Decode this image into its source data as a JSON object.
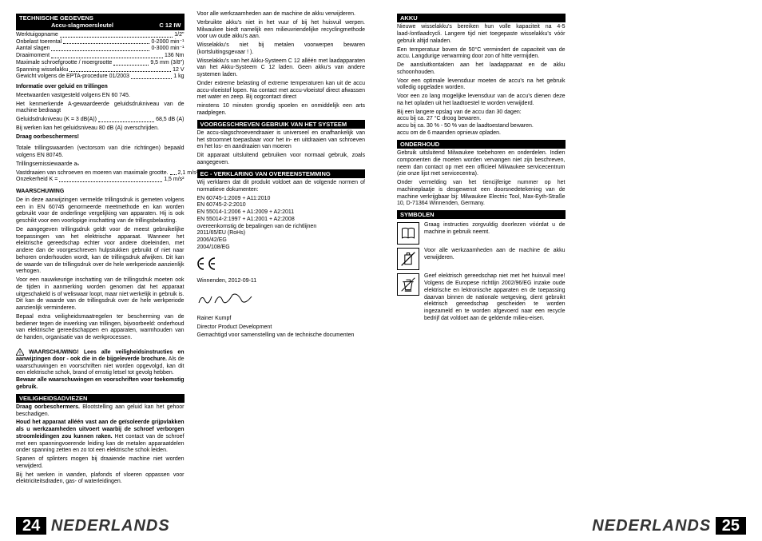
{
  "pageL": "24",
  "pageR": "25",
  "lang": "NEDERLANDS",
  "tech": {
    "title": "TECHNISCHE GEGEVENS",
    "mid": "Accu-slagmoersleutel",
    "right": "C 12 IW",
    "rows": [
      {
        "l": "Werktuigopname",
        "v": "1/2\""
      },
      {
        "l": "Onbelast toerental",
        "v": "0-2000 min⁻¹"
      },
      {
        "l": "Aantal slagen",
        "v": "0-3000 min⁻¹"
      },
      {
        "l": "Draaimoment",
        "v": "136 Nm"
      },
      {
        "l": "Maximale schroefgrootte / moergrootte",
        "v": "9,5 mm (3/8\")"
      },
      {
        "l": "Spanning wisselakku",
        "v": "12 V"
      },
      {
        "l": "Gewicht volgens de EPTA-procedure 01/2003",
        "v": "1 kg"
      }
    ],
    "noise_h": "Informatie over geluid en trillingen",
    "noise1": "Meetwaarden vastgesteld volgens EN 60 745.",
    "noise2": "Het kenmerkende A-gewaardeerde geluidsdrukniveau van de machine bedraagt",
    "noiserow": {
      "l": "  Geluidsdrukniveau (K = 3 dB(A))",
      "v": "68,5 dB (A)"
    },
    "noise3": "Bij werken kan het geluidsniveau 80 dB (A) overschrijden.",
    "noise4": "Draag oorbeschermers!",
    "vib1": "Totale trillingswaarden (vectorsom van drie richtingen) bepaald volgens EN 80745.",
    "vib2": "Trillingsemissiewaarde aₕ",
    "vibrows": [
      {
        "l": "  Vastdraaien van schroeven en moeren van maximale grootte.",
        "v": "2,1 m/s²"
      },
      {
        "l": "  Onzekerheid K =",
        "v": "1,5 m/s²"
      }
    ]
  },
  "warn_h": "WAARSCHUWING",
  "warn_p": [
    "De in deze aanwijzingen vermelde trillingsdruk is gemeten volgens een in EN 60745 genormeerde meetmethode en kan worden gebruikt voor de onderlinge vergelijking van apparaten. Hij is ook geschikt voor een voorlopige inschatting van de trillingsbelasting.",
    "De aangegeven trillingsdruk geldt voor de meest gebruikelijke toepassingen van het elektrische apparaat. Wanneer het elektrische gereedschap echter voor andere doeleinden, met andere dan de voorgeschreven hulpstukken gebruikt of niet naar behoren onderhouden wordt, kan de trillingsdruk afwijken. Dit kan de waarde van de trillingsdruk over de hele werkperiode aanzienlijk verhogen.",
    "Voor een nauwkeurige inschatting van de trillingsdruk moeten ook de tijden in aanmerking worden genomen dat het apparaat uitgeschakeld is of weliswaar loopt, maar niet werkelijk in gebruik is. Dit kan de waarde van de trillingsdruk over de hele werkperiode aanzienlijk verminderen.",
    "Bepaal extra veiligheidsmaatregelen ter bescherming van de bediener tegen de inwerking van trillingen, bijvoorbeeld: onderhoud van elektrische gereedschappen en apparaten, warmhouden van de handen, organisatie van de werkprocessen."
  ],
  "wbox": {
    "t1": "WAARSCHUWING! Lees alle veiligheidsinstructies en aanwijzingen door - ook die in de bijgeleverde brochure.",
    "t2": " Als de waarschuwingen en voorschriften niet worden opgevolgd, kan dit een elektrische schok, brand of ernstig letsel tot gevolg hebben.",
    "t3": "Bewaar alle waarschuwingen en voorschriften voor toekomstig gebruik."
  },
  "veil_h": "VEILIGHEIDSADVIEZEN",
  "veil_p": [
    {
      "b": "Draag oorbeschermers.",
      "t": " Blootstelling aan geluid kan het gehoor beschadigen."
    },
    {
      "b": "Houd het apparaat alléén vast aan de geïsoleerde grijpvlakken als u werkzaamheden uitvoert waarbij de schroef verborgen stroomleidingen zou kunnen raken.",
      "t": " Het contact van de schroef met een spanningvoerende leiding kan de metalen apparaatdelen onder spanning zetten en zo tot een elektrische schok leiden."
    },
    {
      "t": "Spanen of splinters mogen bij draaiende machine niet worden verwijderd."
    },
    {
      "t": "Bij het werken in wanden, plafonds of vloeren oppassen voor elektriciteitsdraden, gas- of waterleidingen."
    },
    {
      "t": "Voor alle werkzaamheden aan de machine de akku verwijderen."
    },
    {
      "t": "Verbruikte akku's niet in het vuur of bij het huisvuil werpen. Milwaukee biedt namelijk een milieuvriendelijke recyclingmethode voor uw oude akku's aan."
    },
    {
      "t": "Wisselakku's niet bij metalen voorwerpen bewaren (kortsluitingsgevaar ! )."
    },
    {
      "t": "Wisselakku's van het Akku-Systeem C 12 alléén met laadapparaten van het Akku-Systeem C 12 laden. Geen akku's van andere systemen laden."
    },
    {
      "t": "Onder extreme belasting of extreme temperaturen kan uit de accu accu-vloeistof lopen. Na contact met accu-vloeistof direct afwassen met water en zeep. Bij oogcontact direct"
    }
  ],
  "col2top": "minstens 10 minuten grondig spoelen en onmiddelijk een arts raadplegen.",
  "voor_h": "VOORGESCHREVEN GEBRUIK VAN HET SYSTEEM",
  "voor_p": [
    "De accu-slagschroevendraaier is universeel en onafhankelijk van het stroomnet toepasbaar voor het in- en uitdraaien van schroeven en het los- en aandraaien van moeren",
    "Dit apparaat uitsluitend gebruiken voor normaal gebruik, zoals aangegeven."
  ],
  "ec_h": "EC - VERKLARING VAN OVEREENSTEMMING",
  "ec_p": "Wij verklaren dat dit produkt voldoet aan de volgende normen of normatieve dokumenten:",
  "ec_n": [
    "EN 60745-1:2009 + A11:2010",
    "EN 60745-2-2:2010",
    "EN 55014-1:2006 + A1:2009 + A2:2011",
    "EN 55014-2:1997 + A1:2001 + A2:2008",
    "overeenkomstig de bepalingen van de richtlijnen",
    "2011/65/EU (RoHs)",
    "2006/42/EG",
    "2004/108/EG"
  ],
  "ce": "Winnenden, 2012-09-11",
  "sig_name": "Rainer Kumpf",
  "sig_title": "Director Product Development",
  "sig_note": "Gemachtigd voor samenstelling van de technische documenten",
  "akku_h": "AKKU",
  "akku_p": [
    "Nieuwe wisselakku's bereiken hun volle kapaciteit na 4-5 laad-/ontlaadcycli. Langere tijd niet toegepaste wisselakku's vóór gebruik altijd naladen.",
    "Een temperatuur boven de 50°C vermindert de capaciteit van de accu. Langdurige verwarming door zon of hitte vermijden.",
    "De aansluitkontakten aan het laadapparaat en de akku schoonhouden.",
    "Voor een optimale levensduur moeten de accu's na het gebruik volledig opgeladen worden.",
    "Voor een zo lang mogelijke levensduur van de accu's dienen deze na het opladen uit het laadtoestel te worden verwijderd.",
    "Bij een langere opslag van de accu dan 30 dagen:\naccu bij ca. 27 °C droog bewaren.\naccu bij ca. 30 % - 50 % van de laadtoestand bewaren.\naccu om de 6 maanden opnieuw opladen."
  ],
  "ond_h": "ONDERHOUD",
  "ond_p": [
    "Gebruik uitsluitend Milwaukee toebehoren en onderdelen. Indien componenten die moeten worden vervangen niet zijn beschreven, neem dan contact op met een officieel Milwaukee servicecentrum (zie onze lijst met servicecentra).",
    "Onder vermelding van het tiencijferige nummer op het machineplaatje is desgewenst een doorsnedetekening van de machine verkrijgbaar bij: Milwaukee Electric Tool, Max-Eyth-Straße 10, D-71364 Winnenden, Germany."
  ],
  "sym_h": "SYMBOLEN",
  "sym": [
    {
      "i": "read",
      "t": "Graag instructies zorgvuldig doorlezen vóórdat u de machine in gebruik neemt."
    },
    {
      "i": "batt",
      "t": "Voor alle werkzaamheden aan de machine de akku verwijderen."
    },
    {
      "i": "weee",
      "t": "Geef elektrisch gereedschap niet met het huisvuil mee! Volgens de Europese richtlijn 2002/96/EG inzake oude elektrische en lektronische apparaten en de toepassing daarvan binnen de nationale wetgeving, dient gebruikt elektrisch gereedschap gescheiden te worden ingezameld en te worden afgevoerd naar een recycle bedrijf dat voldoet aan de geldende milieu-eisen."
    }
  ]
}
